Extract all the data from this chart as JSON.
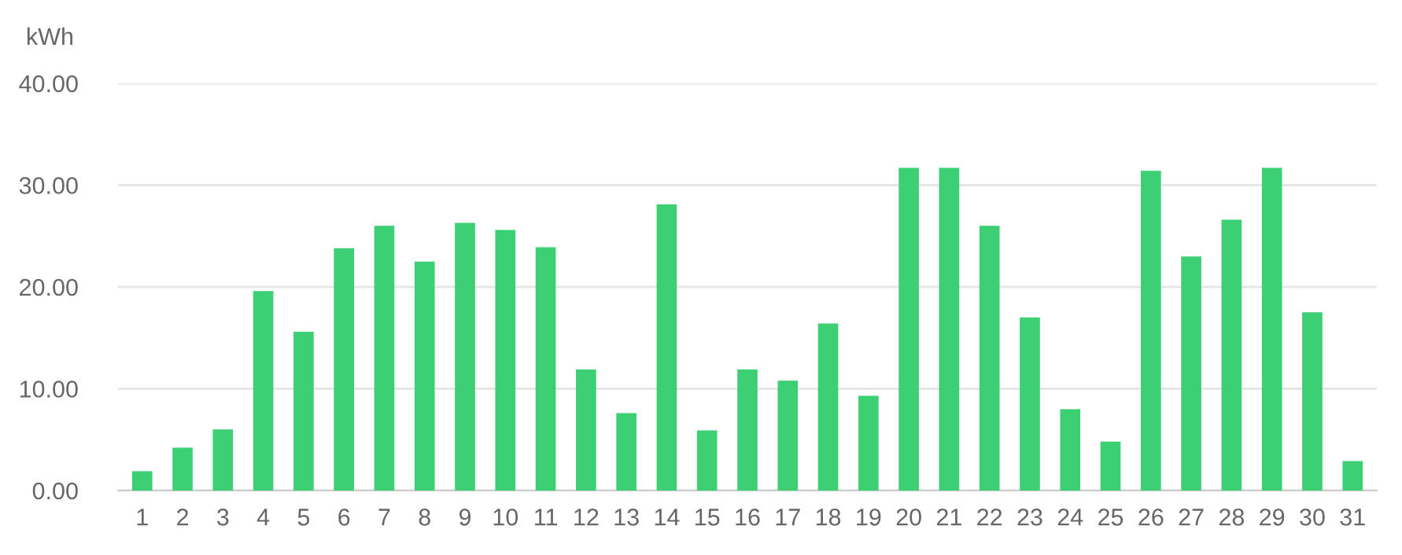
{
  "chart_data": {
    "type": "bar",
    "ylabel": "kWh",
    "categories": [
      "1",
      "2",
      "3",
      "4",
      "5",
      "6",
      "7",
      "8",
      "9",
      "10",
      "11",
      "12",
      "13",
      "14",
      "15",
      "16",
      "17",
      "18",
      "19",
      "20",
      "21",
      "22",
      "23",
      "24",
      "25",
      "26",
      "27",
      "28",
      "29",
      "30",
      "31"
    ],
    "values": [
      1.9,
      4.2,
      6.0,
      19.6,
      15.6,
      23.8,
      26.0,
      22.5,
      26.3,
      25.6,
      23.9,
      11.9,
      7.6,
      28.1,
      5.9,
      11.9,
      10.8,
      16.4,
      9.3,
      31.7,
      31.7,
      26.0,
      17.0,
      8.0,
      4.8,
      31.4,
      23.0,
      26.6,
      31.7,
      17.5,
      2.9
    ],
    "color": "#3ccf74",
    "ylim": [
      0,
      40
    ],
    "yticks": [
      {
        "value": 0,
        "label": "0.00"
      },
      {
        "value": 10,
        "label": "10.00"
      },
      {
        "value": 20,
        "label": "20.00"
      },
      {
        "value": 30,
        "label": "30.00"
      },
      {
        "value": 40,
        "label": "40.00"
      }
    ],
    "grid": "y",
    "legend": false
  }
}
